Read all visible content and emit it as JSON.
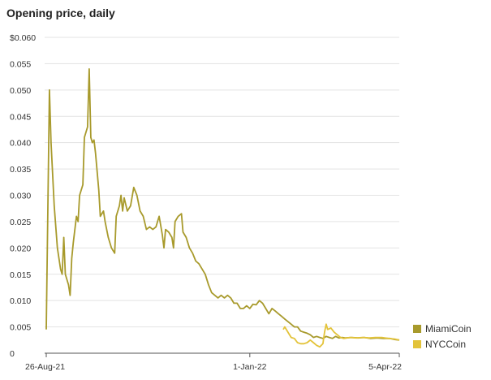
{
  "chart_data": {
    "type": "line",
    "title": "Opening price, daily",
    "xlabel": "",
    "ylabel": "",
    "x_tick_labels": [
      {
        "date": "2021-08-26",
        "label": "26-Aug-21"
      },
      {
        "date": "2022-01-01",
        "label": "1-Jan-22"
      },
      {
        "date": "2022-04-05",
        "label": "5-Apr-22"
      }
    ],
    "xlim": [
      "2021-08-26",
      "2022-04-05"
    ],
    "y_ticks": [
      0,
      0.005,
      0.01,
      0.015,
      0.02,
      0.025,
      0.03,
      0.035,
      0.04,
      0.045,
      0.05,
      0.055,
      0.06
    ],
    "y_tick_labels": [
      "0",
      "0.005",
      "0.010",
      "0.015",
      "0.020",
      "0.025",
      "0.030",
      "0.035",
      "0.040",
      "0.045",
      "0.050",
      "0.055",
      "$0.060"
    ],
    "ylim": [
      0,
      0.06
    ],
    "grid": true,
    "legend_position": "bottom-right",
    "series": [
      {
        "name": "MiamiCoin",
        "color": "#a89a2c",
        "points": [
          [
            "2021-08-26",
            0.0045
          ],
          [
            "2021-08-28",
            0.05
          ],
          [
            "2021-08-29",
            0.04
          ],
          [
            "2021-08-31",
            0.028
          ],
          [
            "2021-09-02",
            0.02
          ],
          [
            "2021-09-04",
            0.016
          ],
          [
            "2021-09-05",
            0.015
          ],
          [
            "2021-09-06",
            0.022
          ],
          [
            "2021-09-07",
            0.015
          ],
          [
            "2021-09-09",
            0.013
          ],
          [
            "2021-09-10",
            0.011
          ],
          [
            "2021-09-11",
            0.018
          ],
          [
            "2021-09-12",
            0.021
          ],
          [
            "2021-09-14",
            0.026
          ],
          [
            "2021-09-15",
            0.025
          ],
          [
            "2021-09-16",
            0.03
          ],
          [
            "2021-09-18",
            0.032
          ],
          [
            "2021-09-19",
            0.041
          ],
          [
            "2021-09-21",
            0.043
          ],
          [
            "2021-09-22",
            0.054
          ],
          [
            "2021-09-23",
            0.041
          ],
          [
            "2021-09-24",
            0.04
          ],
          [
            "2021-09-25",
            0.0405
          ],
          [
            "2021-09-26",
            0.038
          ],
          [
            "2021-09-28",
            0.031
          ],
          [
            "2021-09-29",
            0.026
          ],
          [
            "2021-10-01",
            0.027
          ],
          [
            "2021-10-02",
            0.025
          ],
          [
            "2021-10-04",
            0.022
          ],
          [
            "2021-10-06",
            0.02
          ],
          [
            "2021-10-08",
            0.019
          ],
          [
            "2021-10-09",
            0.026
          ],
          [
            "2021-10-11",
            0.028
          ],
          [
            "2021-10-12",
            0.03
          ],
          [
            "2021-10-13",
            0.027
          ],
          [
            "2021-10-14",
            0.0295
          ],
          [
            "2021-10-16",
            0.027
          ],
          [
            "2021-10-18",
            0.028
          ],
          [
            "2021-10-20",
            0.0315
          ],
          [
            "2021-10-22",
            0.03
          ],
          [
            "2021-10-24",
            0.027
          ],
          [
            "2021-10-26",
            0.026
          ],
          [
            "2021-10-28",
            0.0235
          ],
          [
            "2021-10-30",
            0.024
          ],
          [
            "2021-11-01",
            0.0235
          ],
          [
            "2021-11-03",
            0.024
          ],
          [
            "2021-11-05",
            0.026
          ],
          [
            "2021-11-07",
            0.0225
          ],
          [
            "2021-11-08",
            0.02
          ],
          [
            "2021-11-09",
            0.0235
          ],
          [
            "2021-11-11",
            0.023
          ],
          [
            "2021-11-13",
            0.022
          ],
          [
            "2021-11-14",
            0.02
          ],
          [
            "2021-11-15",
            0.025
          ],
          [
            "2021-11-17",
            0.026
          ],
          [
            "2021-11-19",
            0.0265
          ],
          [
            "2021-11-20",
            0.023
          ],
          [
            "2021-11-22",
            0.022
          ],
          [
            "2021-11-24",
            0.02
          ],
          [
            "2021-11-26",
            0.019
          ],
          [
            "2021-11-28",
            0.0175
          ],
          [
            "2021-11-30",
            0.017
          ],
          [
            "2021-12-02",
            0.016
          ],
          [
            "2021-12-04",
            0.015
          ],
          [
            "2021-12-06",
            0.013
          ],
          [
            "2021-12-08",
            0.0115
          ],
          [
            "2021-12-10",
            0.011
          ],
          [
            "2021-12-12",
            0.0105
          ],
          [
            "2021-12-14",
            0.011
          ],
          [
            "2021-12-16",
            0.0105
          ],
          [
            "2021-12-18",
            0.011
          ],
          [
            "2021-12-20",
            0.0105
          ],
          [
            "2021-12-22",
            0.0095
          ],
          [
            "2021-12-24",
            0.0095
          ],
          [
            "2021-12-26",
            0.0085
          ],
          [
            "2021-12-28",
            0.0085
          ],
          [
            "2021-12-30",
            0.009
          ],
          [
            "2022-01-01",
            0.0085
          ],
          [
            "2022-01-03",
            0.0093
          ],
          [
            "2022-01-05",
            0.0092
          ],
          [
            "2022-01-07",
            0.01
          ],
          [
            "2022-01-09",
            0.0095
          ],
          [
            "2022-01-11",
            0.0085
          ],
          [
            "2022-01-13",
            0.0075
          ],
          [
            "2022-01-15",
            0.0085
          ],
          [
            "2022-01-17",
            0.008
          ],
          [
            "2022-01-19",
            0.0075
          ],
          [
            "2022-01-21",
            0.007
          ],
          [
            "2022-01-23",
            0.0065
          ],
          [
            "2022-01-25",
            0.006
          ],
          [
            "2022-01-27",
            0.0055
          ],
          [
            "2022-01-29",
            0.005
          ],
          [
            "2022-01-31",
            0.005
          ],
          [
            "2022-02-02",
            0.0042
          ],
          [
            "2022-02-04",
            0.004
          ],
          [
            "2022-02-06",
            0.0038
          ],
          [
            "2022-02-08",
            0.0035
          ],
          [
            "2022-02-10",
            0.003
          ],
          [
            "2022-02-12",
            0.0032
          ],
          [
            "2022-02-14",
            0.003
          ],
          [
            "2022-02-16",
            0.0028
          ],
          [
            "2022-02-18",
            0.0032
          ],
          [
            "2022-02-20",
            0.003
          ],
          [
            "2022-02-22",
            0.0028
          ],
          [
            "2022-02-24",
            0.0032
          ],
          [
            "2022-02-26",
            0.0029
          ],
          [
            "2022-02-28",
            0.003
          ],
          [
            "2022-03-02",
            0.0029
          ],
          [
            "2022-03-06",
            0.003
          ],
          [
            "2022-03-10",
            0.0029
          ],
          [
            "2022-03-14",
            0.003
          ],
          [
            "2022-03-18",
            0.0028
          ],
          [
            "2022-03-22",
            0.0029
          ],
          [
            "2022-03-26",
            0.0028
          ],
          [
            "2022-03-30",
            0.0028
          ],
          [
            "2022-04-02",
            0.0026
          ],
          [
            "2022-04-05",
            0.0025
          ]
        ]
      },
      {
        "name": "NYCCoin",
        "color": "#e3c33a",
        "points": [
          [
            "2022-01-22",
            0.0045
          ],
          [
            "2022-01-23",
            0.005
          ],
          [
            "2022-01-25",
            0.004
          ],
          [
            "2022-01-27",
            0.003
          ],
          [
            "2022-01-29",
            0.0028
          ],
          [
            "2022-01-31",
            0.002
          ],
          [
            "2022-02-02",
            0.0018
          ],
          [
            "2022-02-04",
            0.0018
          ],
          [
            "2022-02-06",
            0.002
          ],
          [
            "2022-02-08",
            0.0025
          ],
          [
            "2022-02-10",
            0.002
          ],
          [
            "2022-02-12",
            0.0015
          ],
          [
            "2022-02-14",
            0.0012
          ],
          [
            "2022-02-16",
            0.0018
          ],
          [
            "2022-02-17",
            0.004
          ],
          [
            "2022-02-18",
            0.0055
          ],
          [
            "2022-02-19",
            0.0045
          ],
          [
            "2022-02-21",
            0.0048
          ],
          [
            "2022-02-23",
            0.004
          ],
          [
            "2022-02-25",
            0.0035
          ],
          [
            "2022-02-27",
            0.003
          ],
          [
            "2022-03-01",
            0.0028
          ],
          [
            "2022-03-05",
            0.003
          ],
          [
            "2022-03-09",
            0.0029
          ],
          [
            "2022-03-13",
            0.003
          ],
          [
            "2022-03-17",
            0.0029
          ],
          [
            "2022-03-21",
            0.003
          ],
          [
            "2022-03-25",
            0.003
          ],
          [
            "2022-03-29",
            0.0028
          ],
          [
            "2022-04-02",
            0.0027
          ],
          [
            "2022-04-05",
            0.0025
          ]
        ]
      }
    ]
  }
}
